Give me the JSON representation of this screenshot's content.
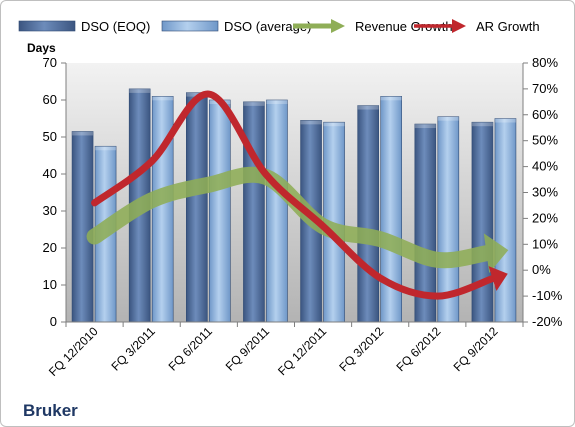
{
  "chart_data": {
    "type": "bar",
    "company": "Bruker",
    "categories": [
      "FQ 12/2010",
      "FQ 3/2011",
      "FQ 6/2011",
      "FQ 9/2011",
      "FQ 12/2011",
      "FQ 3/2012",
      "FQ 6/2012",
      "FQ 9/2012"
    ],
    "left_axis": {
      "title": "Days",
      "ylim": [
        0,
        70
      ],
      "ticks": [
        0,
        10,
        20,
        30,
        40,
        50,
        60,
        70
      ],
      "tick_labels": [
        "0",
        "10",
        "20",
        "30",
        "40",
        "50",
        "60",
        "70"
      ]
    },
    "right_axis": {
      "ylim": [
        -20,
        80
      ],
      "ticks": [
        -20,
        -10,
        0,
        10,
        20,
        30,
        40,
        50,
        60,
        70,
        80
      ],
      "tick_labels": [
        "-20%",
        "-10%",
        "0%",
        "10%",
        "20%",
        "30%",
        "40%",
        "50%",
        "60%",
        "70%",
        "80%"
      ]
    },
    "series": [
      {
        "name": "DSO (EOQ)",
        "kind": "bar",
        "axis": "left",
        "color": "#4f6d9e",
        "values": [
          51.5,
          63,
          62,
          59.5,
          54.5,
          58.5,
          53.5,
          54
        ]
      },
      {
        "name": "DSO (average)",
        "kind": "bar",
        "axis": "left",
        "color": "#8fb3dd",
        "values": [
          47.5,
          61,
          60,
          60,
          54,
          61,
          55.5,
          55
        ]
      },
      {
        "name": "Revenue Growth",
        "kind": "arrow",
        "axis": "right",
        "color": "#8fae57",
        "values": [
          13,
          27,
          33,
          36,
          17,
          12,
          4,
          7
        ]
      },
      {
        "name": "AR Growth",
        "kind": "arrow",
        "axis": "right",
        "color": "#c0272d",
        "values": [
          26,
          42,
          68,
          37,
          17,
          -3,
          -10,
          -3
        ]
      }
    ],
    "legend_position": "top",
    "grid": false
  }
}
